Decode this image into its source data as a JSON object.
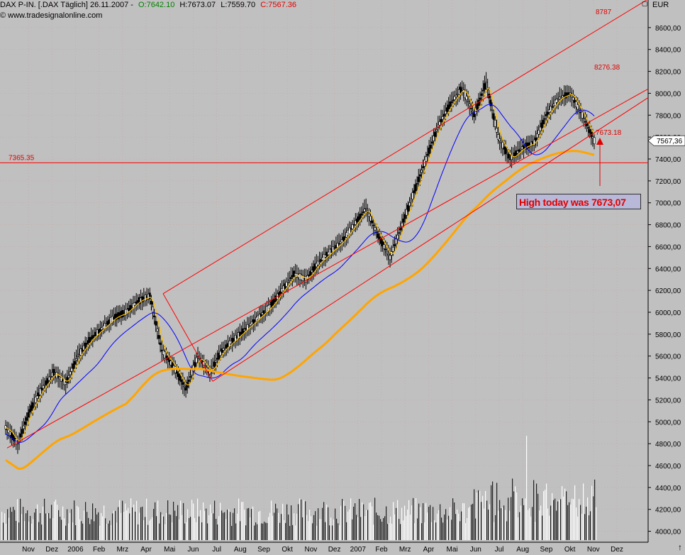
{
  "header": {
    "instrument": "DAX P-IN. [.DAX Täglich] 26.11.2007 -",
    "open": "O:7642.10",
    "high": "H:7673.07",
    "low": "L:7559.70",
    "close": "C:7567.36"
  },
  "watermark": "© www.tradesignalonline.com",
  "currency": "EUR",
  "last_price_label": "7567,36",
  "annotation": "High today was 7673,07",
  "colors": {
    "background": "#c0c0c0",
    "grid": "#ff0000",
    "channel": "#ff0000",
    "candle": "#000000",
    "ma_fast": "#ffc000",
    "ma_mid": "#0000ff",
    "ma_slow": "#ffa500",
    "volume": "#ffffff"
  },
  "chart_data": {
    "type": "line",
    "title": "DAX P-IN. [.DAX Täglich] 26.11.2007",
    "y_axis": {
      "range": [
        3900,
        8800
      ],
      "ticks": [
        "4000,00",
        "4200,00",
        "4400,00",
        "4600,00",
        "4800,00",
        "5000,00",
        "5200,00",
        "5400,00",
        "5600,00",
        "5800,00",
        "6000,00",
        "6200,00",
        "6400,00",
        "6600,00",
        "6800,00",
        "7000,00",
        "7200,00",
        "7400,00",
        "7600,00",
        "7800,00",
        "8000,00",
        "8200,00",
        "8400,00",
        "8600,00"
      ]
    },
    "x_axis": {
      "labels": [
        "Nov",
        "Dez",
        "2006",
        "Feb",
        "Mrz",
        "Apr",
        "Mai",
        "Jun",
        "Jul",
        "Aug",
        "Sep",
        "Okt",
        "Nov",
        "Dez",
        "2007",
        "Feb",
        "Mrz",
        "Apr",
        "Mai",
        "Jun",
        "Jul",
        "Aug",
        "Sep",
        "Okt",
        "Nov",
        "Dez"
      ]
    },
    "price_series": {
      "name": "DAX",
      "points": [
        [
          "Nov",
          4950
        ],
        [
          "Nov",
          4800
        ],
        [
          "Dez",
          5100
        ],
        [
          "Dez",
          5300
        ],
        [
          "2006",
          5450
        ],
        [
          "2006",
          5350
        ],
        [
          "Feb",
          5600
        ],
        [
          "Feb",
          5750
        ],
        [
          "Mrz",
          5850
        ],
        [
          "Mrz",
          5950
        ],
        [
          "Apr",
          6000
        ],
        [
          "Apr",
          6100
        ],
        [
          "Mai",
          6150
        ],
        [
          "Mai",
          5650
        ],
        [
          "Jun",
          5500
        ],
        [
          "Jun",
          5300
        ],
        [
          "Jul",
          5600
        ],
        [
          "Jul",
          5450
        ],
        [
          "Aug",
          5650
        ],
        [
          "Aug",
          5750
        ],
        [
          "Sep",
          5850
        ],
        [
          "Sep",
          5950
        ],
        [
          "Okt",
          6050
        ],
        [
          "Okt",
          6200
        ],
        [
          "Nov",
          6350
        ],
        [
          "Nov",
          6300
        ],
        [
          "Dez",
          6450
        ],
        [
          "Dez",
          6550
        ],
        [
          "2007",
          6650
        ],
        [
          "2007",
          6800
        ],
        [
          "Feb",
          6950
        ],
        [
          "Feb",
          6700
        ],
        [
          "Mrz",
          6500
        ],
        [
          "Mrz",
          6800
        ],
        [
          "Apr",
          7100
        ],
        [
          "Apr",
          7400
        ],
        [
          "Mai",
          7700
        ],
        [
          "Mai",
          7900
        ],
        [
          "Jun",
          8050
        ],
        [
          "Jun",
          7800
        ],
        [
          "Jul",
          8100
        ],
        [
          "Jul",
          7600
        ],
        [
          "Aug",
          7400
        ],
        [
          "Aug",
          7500
        ],
        [
          "Sep",
          7550
        ],
        [
          "Sep",
          7800
        ],
        [
          "Okt",
          7950
        ],
        [
          "Okt",
          8000
        ],
        [
          "Nov",
          7800
        ],
        [
          "Nov",
          7567
        ]
      ]
    },
    "reference_lines": [
      {
        "label": "7365.35",
        "value": 7365.35
      },
      {
        "label": "8787",
        "value": 8787
      },
      {
        "label": "8276.38",
        "value": 8276.38
      },
      {
        "label": "7673.18",
        "value": 7673.18
      }
    ],
    "volume": {
      "range": [
        3900,
        4900
      ],
      "note": "volume bars drawn in lower panel area"
    }
  }
}
